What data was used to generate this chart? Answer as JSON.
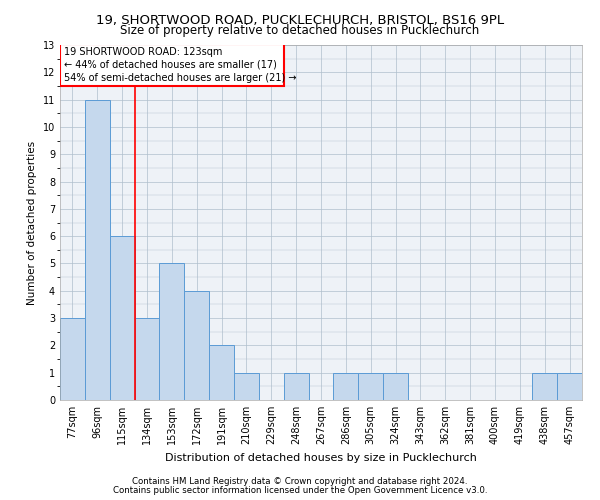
{
  "title1": "19, SHORTWOOD ROAD, PUCKLECHURCH, BRISTOL, BS16 9PL",
  "title2": "Size of property relative to detached houses in Pucklechurch",
  "xlabel": "Distribution of detached houses by size in Pucklechurch",
  "ylabel": "Number of detached properties",
  "categories": [
    "77sqm",
    "96sqm",
    "115sqm",
    "134sqm",
    "153sqm",
    "172sqm",
    "191sqm",
    "210sqm",
    "229sqm",
    "248sqm",
    "267sqm",
    "286sqm",
    "305sqm",
    "324sqm",
    "343sqm",
    "362sqm",
    "381sqm",
    "400sqm",
    "419sqm",
    "438sqm",
    "457sqm"
  ],
  "values": [
    3,
    11,
    6,
    3,
    5,
    4,
    2,
    1,
    0,
    1,
    0,
    1,
    1,
    1,
    0,
    0,
    0,
    0,
    0,
    1,
    1
  ],
  "bar_color": "#c5d8ed",
  "bar_edge_color": "#5b9bd5",
  "ref_line_x": 2.5,
  "annotation_text_line1": "19 SHORTWOOD ROAD: 123sqm",
  "annotation_text_line2": "← 44% of detached houses are smaller (17)",
  "annotation_text_line3": "54% of semi-detached houses are larger (21) →",
  "ylim": [
    0,
    13
  ],
  "yticks": [
    0,
    1,
    2,
    3,
    4,
    5,
    6,
    7,
    8,
    9,
    10,
    11,
    12,
    13
  ],
  "footer1": "Contains HM Land Registry data © Crown copyright and database right 2024.",
  "footer2": "Contains public sector information licensed under the Open Government Licence v3.0.",
  "bg_color": "#eef2f7",
  "grid_color": "#b0bfcc",
  "title1_fontsize": 9.5,
  "title2_fontsize": 8.5,
  "ylabel_fontsize": 7.5,
  "xlabel_fontsize": 8.0,
  "tick_fontsize": 7.0,
  "footer_fontsize": 6.2,
  "annot_fontsize": 7.0
}
